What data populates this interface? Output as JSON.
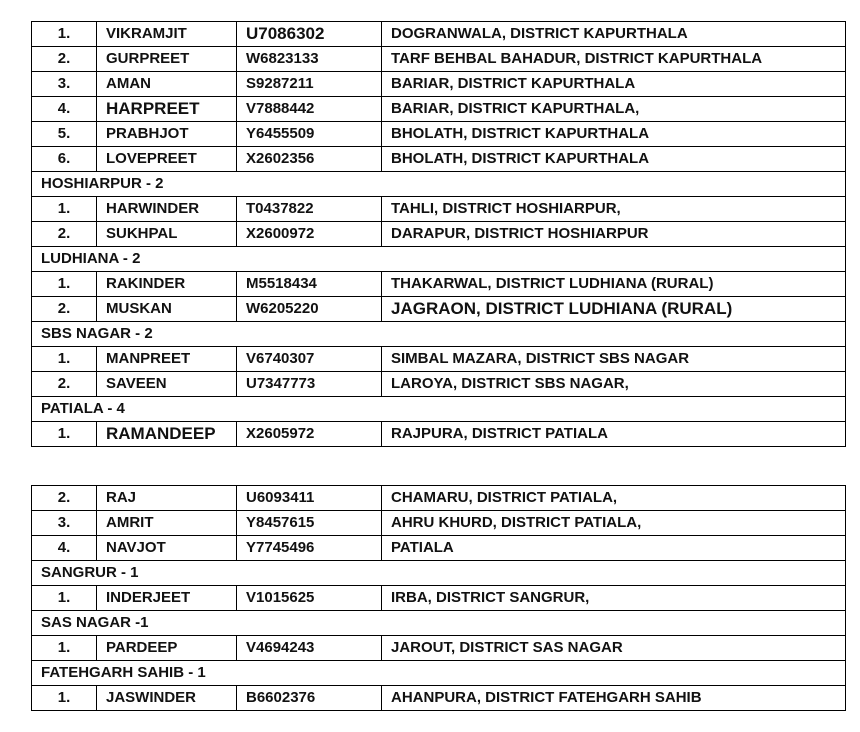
{
  "table1": [
    {
      "no": "1.",
      "name": "VIKRAMJIT",
      "passport": "U7086302",
      "address": "DOGRANWALA, DISTRICT KAPURTHALA"
    },
    {
      "no": "2.",
      "name": "GURPREET",
      "passport": "W6823133",
      "address": "TARF BEHBAL BAHADUR, DISTRICT KAPURTHALA"
    },
    {
      "no": "3.",
      "name": "AMAN",
      "passport": "S9287211",
      "address": "BARIAR, DISTRICT KAPURTHALA"
    },
    {
      "no": "4.",
      "name": "HARPREET",
      "passport": "V7888442",
      "address": "BARIAR, DISTRICT KAPURTHALA,"
    },
    {
      "no": "5.",
      "name": "PRABHJOT",
      "passport": "Y6455509",
      "address": "BHOLATH, DISTRICT KAPURTHALA"
    },
    {
      "no": "6.",
      "name": "LOVEPREET",
      "passport": "X2602356",
      "address": "BHOLATH, DISTRICT KAPURTHALA"
    },
    {
      "section": "HOSHIARPUR - 2"
    },
    {
      "no": "1.",
      "name": "HARWINDER",
      "passport": "T0437822",
      "address": "TAHLI, DISTRICT HOSHIARPUR,"
    },
    {
      "no": "2.",
      "name": "SUKHPAL",
      "passport": "X2600972",
      "address": "DARAPUR, DISTRICT HOSHIARPUR"
    },
    {
      "section": "LUDHIANA - 2"
    },
    {
      "no": "1.",
      "name": "RAKINDER",
      "passport": "M5518434",
      "address": "THAKARWAL, DISTRICT LUDHIANA (RURAL)"
    },
    {
      "no": "2.",
      "name": "MUSKAN",
      "passport": "W6205220",
      "address": "JAGRAON, DISTRICT LUDHIANA (RURAL)"
    },
    {
      "section": "SBS NAGAR - 2"
    },
    {
      "no": "1.",
      "name": "MANPREET",
      "passport": "V6740307",
      "address": "SIMBAL MAZARA, DISTRICT SBS NAGAR"
    },
    {
      "no": "2.",
      "name": "SAVEEN",
      "passport": "U7347773",
      "address": "LAROYA, DISTRICT SBS NAGAR,"
    },
    {
      "section": "PATIALA - 4"
    },
    {
      "no": "1.",
      "name": "RAMANDEEP",
      "passport": "X2605972",
      "address": "RAJPURA, DISTRICT PATIALA"
    }
  ],
  "table2": [
    {
      "no": "2.",
      "name": "RAJ",
      "passport": "U6093411",
      "address": "CHAMARU, DISTRICT PATIALA,"
    },
    {
      "no": "3.",
      "name": "AMRIT",
      "passport": "Y8457615",
      "address": "AHRU KHURD, DISTRICT PATIALA,"
    },
    {
      "no": "4.",
      "name": "NAVJOT",
      "passport": "Y7745496",
      "address": "PATIALA"
    },
    {
      "section": "SANGRUR - 1"
    },
    {
      "no": "1.",
      "name": "INDERJEET",
      "passport": "V1015625",
      "address": "IRBA, DISTRICT SANGRUR,"
    },
    {
      "section": "SAS NAGAR -1"
    },
    {
      "no": "1.",
      "name": "PARDEEP",
      "passport": "V4694243",
      "address": "JAROUT, DISTRICT SAS NAGAR"
    },
    {
      "section": "FATEHGARH SAHIB - 1"
    },
    {
      "no": "1.",
      "name": "JASWINDER",
      "passport": "B6602376",
      "address": "AHANPURA, DISTRICT FATEHGARH SAHIB"
    }
  ]
}
